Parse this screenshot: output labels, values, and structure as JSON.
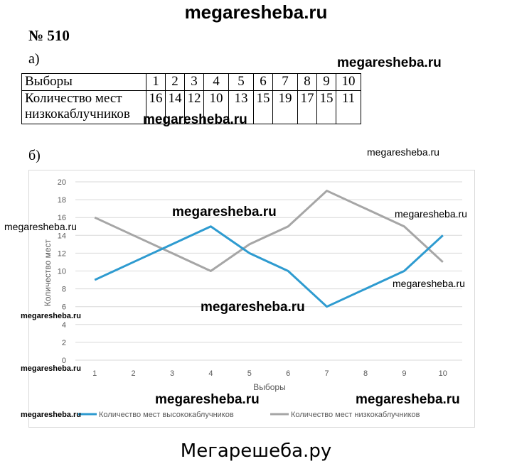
{
  "site_title": "megaresheba.ru",
  "site_footer": "Мегарешеба.ру",
  "task_number": "№ 510",
  "part_a": "а)",
  "part_b": "б)",
  "table": {
    "row_header_1": "Выборы",
    "row_header_2": "Количество мест низкокаблучников",
    "elections": [
      "1",
      "2",
      "3",
      "4",
      "5",
      "6",
      "7",
      "8",
      "9",
      "10"
    ],
    "seats_low_heels": [
      "16",
      "14",
      "12",
      "10",
      "13",
      "15",
      "19",
      "17",
      "15",
      "11"
    ]
  },
  "watermarks": {
    "large": "megaresheba.ru",
    "small": "megaresheba.ru"
  },
  "colors": {
    "high_heels": "#2e9bd0",
    "low_heels": "#a6a6a6",
    "grid": "#d9d9d9"
  },
  "chart_data": {
    "type": "line",
    "x": [
      1,
      2,
      3,
      4,
      5,
      6,
      7,
      8,
      9,
      10
    ],
    "series": [
      {
        "name": "Количество мест высококаблучников",
        "values": [
          9,
          11,
          13,
          15,
          12,
          10,
          6,
          8,
          10,
          14
        ]
      },
      {
        "name": "Количество мест низкокаблучников",
        "values": [
          16,
          14,
          12,
          10,
          13,
          15,
          19,
          17,
          15,
          11
        ]
      }
    ],
    "xlabel": "Выборы",
    "ylabel": "Количество мест",
    "ylim": [
      0,
      20
    ],
    "yticks": [
      0,
      2,
      4,
      6,
      8,
      10,
      12,
      14,
      16,
      18,
      20
    ],
    "grid": true,
    "legend_position": "bottom"
  }
}
